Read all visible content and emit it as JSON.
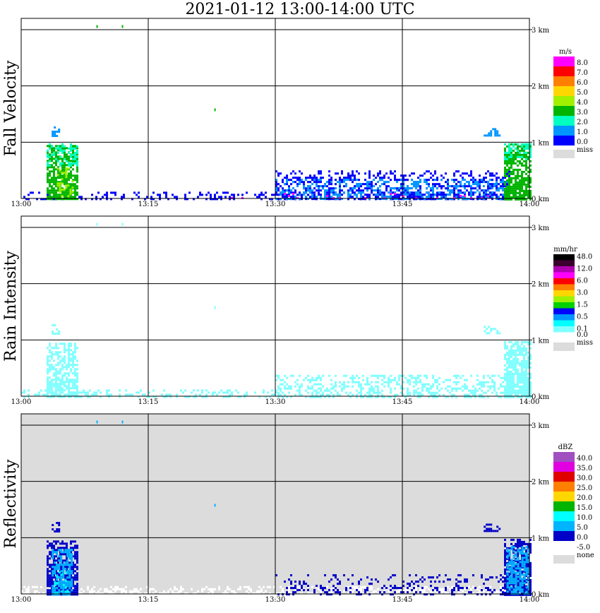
{
  "title": "2021-01-12   13:00-14:00 UTC",
  "chart_data": {
    "type": "heatmap",
    "x_ticks": [
      "13:00",
      "13:15",
      "13:30",
      "13:45",
      "14:00"
    ],
    "y_ticks": [
      "0 km",
      "1 km",
      "2 km",
      "3 km"
    ],
    "panels": [
      {
        "name": "Fall Velocity",
        "units": "m/s",
        "background": "#ffffff",
        "legend": [
          {
            "label": "8.0",
            "color": "#ff00ff"
          },
          {
            "label": "7.0",
            "color": "#ff0000"
          },
          {
            "label": "6.0",
            "color": "#ff7f00"
          },
          {
            "label": "5.0",
            "color": "#ffd700"
          },
          {
            "label": "4.0",
            "color": "#a0f000"
          },
          {
            "label": "3.0",
            "color": "#00b400"
          },
          {
            "label": "2.0",
            "color": "#00ffc0"
          },
          {
            "label": "1.0",
            "color": "#0096ff"
          },
          {
            "label": "0.0",
            "color": "#0000ff"
          },
          {
            "label": "miss",
            "color": "#dcdcdc"
          }
        ],
        "regions": [
          {
            "t0": 13.0,
            "t1": 14.0,
            "z0": 0.0,
            "z1": 0.12,
            "color": "#0000ff",
            "density": 0.35
          },
          {
            "t0": 13.05,
            "t1": 13.11,
            "z0": 0.0,
            "z1": 0.95,
            "color": "#00b400",
            "density": 0.85
          },
          {
            "t0": 13.05,
            "t1": 13.11,
            "z0": 0.6,
            "z1": 0.98,
            "color": "#00ffc0",
            "density": 0.5
          },
          {
            "t0": 13.07,
            "t1": 13.1,
            "z0": 0.05,
            "z1": 0.55,
            "color": "#a0f000",
            "density": 0.3
          },
          {
            "t0": 13.06,
            "t1": 13.075,
            "z0": 1.12,
            "z1": 1.28,
            "color": "#0096ff",
            "density": 0.6
          },
          {
            "t0": 13.5,
            "t1": 13.96,
            "z0": 0.0,
            "z1": 0.5,
            "color": "#0000ff",
            "density": 0.45
          },
          {
            "t0": 13.5,
            "t1": 13.96,
            "z0": 0.0,
            "z1": 0.35,
            "color": "#0096ff",
            "density": 0.35
          },
          {
            "t0": 13.95,
            "t1": 14.0,
            "z0": 0.0,
            "z1": 0.98,
            "color": "#00b400",
            "density": 0.85
          },
          {
            "t0": 13.95,
            "t1": 14.0,
            "z0": 0.7,
            "z1": 0.98,
            "color": "#00ffc0",
            "density": 0.5
          },
          {
            "t0": 13.91,
            "t1": 13.94,
            "z0": 1.12,
            "z1": 1.25,
            "color": "#0096ff",
            "density": 0.6
          },
          {
            "t0": 13.4,
            "t1": 13.92,
            "z0": 0.0,
            "z1": 0.1,
            "color": "#ff00ff",
            "density": 0.06
          }
        ]
      },
      {
        "name": "Rain Intensity",
        "units": "mm/hr",
        "background": "#ffffff",
        "legend": [
          {
            "label": "48.0",
            "color": "#000000"
          },
          {
            "label": "",
            "color": "#3c0030"
          },
          {
            "label": "12.0",
            "color": "#b000b0"
          },
          {
            "label": "",
            "color": "#ff00ff"
          },
          {
            "label": "6.0",
            "color": "#ff0000"
          },
          {
            "label": "",
            "color": "#ff7f00"
          },
          {
            "label": "3.0",
            "color": "#ffd700"
          },
          {
            "label": "",
            "color": "#a0f000"
          },
          {
            "label": "1.5",
            "color": "#00d000"
          },
          {
            "label": "",
            "color": "#0000ff"
          },
          {
            "label": "0.5",
            "color": "#0096ff"
          },
          {
            "label": "",
            "color": "#00ffff"
          },
          {
            "label": "0.1",
            "color": "#80ffff"
          },
          {
            "label": "0.0",
            "color": "#ffffff"
          },
          {
            "label": "miss",
            "color": "#dcdcdc"
          }
        ],
        "regions": [
          {
            "t0": 13.0,
            "t1": 13.5,
            "z0": 0.0,
            "z1": 0.12,
            "color": "#80ffff",
            "density": 0.35
          },
          {
            "t0": 13.05,
            "t1": 13.11,
            "z0": 0.0,
            "z1": 0.95,
            "color": "#80ffff",
            "density": 0.8
          },
          {
            "t0": 13.06,
            "t1": 13.075,
            "z0": 1.12,
            "z1": 1.28,
            "color": "#80ffff",
            "density": 0.5
          },
          {
            "t0": 13.5,
            "t1": 13.96,
            "z0": 0.0,
            "z1": 0.38,
            "color": "#80ffff",
            "density": 0.45
          },
          {
            "t0": 13.95,
            "t1": 14.0,
            "z0": 0.0,
            "z1": 0.98,
            "color": "#80ffff",
            "density": 0.95
          },
          {
            "t0": 13.91,
            "t1": 13.94,
            "z0": 1.12,
            "z1": 1.25,
            "color": "#80ffff",
            "density": 0.55
          }
        ]
      },
      {
        "name": "Reflectivity",
        "units": "dBZ",
        "background": "#dcdcdc",
        "legend": [
          {
            "label": "40.0",
            "color": "#a050c0"
          },
          {
            "label": "35.0",
            "color": "#e000e0"
          },
          {
            "label": "30.0",
            "color": "#e00000"
          },
          {
            "label": "25.0",
            "color": "#ff7f00"
          },
          {
            "label": "20.0",
            "color": "#ffd700"
          },
          {
            "label": "15.0",
            "color": "#00b400"
          },
          {
            "label": "10.0",
            "color": "#00ffff"
          },
          {
            "label": "5.0",
            "color": "#00b4ff"
          },
          {
            "label": "0.0",
            "color": "#0000c8"
          },
          {
            "label": "-5.0",
            "color": "#ffffff"
          },
          {
            "label": "none",
            "color": "#dcdcdc"
          }
        ],
        "regions": [
          {
            "t0": 13.0,
            "t1": 14.0,
            "z0": 0.0,
            "z1": 0.14,
            "color": "#ffffff",
            "density": 0.5
          },
          {
            "t0": 13.05,
            "t1": 13.11,
            "z0": 0.0,
            "z1": 0.95,
            "color": "#0000c8",
            "density": 0.9
          },
          {
            "t0": 13.06,
            "t1": 13.1,
            "z0": 0.0,
            "z1": 0.8,
            "color": "#00b4ff",
            "density": 0.75
          },
          {
            "t0": 13.065,
            "t1": 13.09,
            "z0": 0.0,
            "z1": 0.4,
            "color": "#00ffff",
            "density": 0.3
          },
          {
            "t0": 13.06,
            "t1": 13.075,
            "z0": 1.12,
            "z1": 1.28,
            "color": "#0000c8",
            "density": 0.6
          },
          {
            "t0": 13.5,
            "t1": 13.96,
            "z0": 0.0,
            "z1": 0.35,
            "color": "#0000c8",
            "density": 0.25
          },
          {
            "t0": 13.95,
            "t1": 14.0,
            "z0": 0.0,
            "z1": 0.98,
            "color": "#0000c8",
            "density": 0.9
          },
          {
            "t0": 13.955,
            "t1": 14.0,
            "z0": 0.0,
            "z1": 0.85,
            "color": "#00b4ff",
            "density": 0.8
          },
          {
            "t0": 13.91,
            "t1": 13.94,
            "z0": 1.12,
            "z1": 1.25,
            "color": "#0000c8",
            "density": 0.55
          }
        ]
      }
    ]
  }
}
